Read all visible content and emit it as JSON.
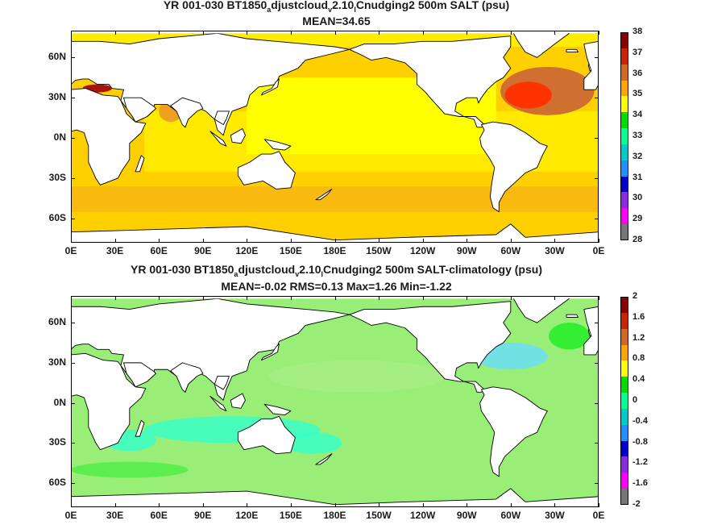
{
  "chart_data": [
    {
      "type": "heatmap",
      "title_line1_parts": [
        "YR 001-030 BT1850",
        "a",
        "djustcloud",
        "v",
        "2.10",
        "l",
        "Cnudging2 500m SALT (psu)"
      ],
      "title_line2": "MEAN=34.65",
      "x_tick_labels": [
        "0E",
        "30E",
        "60E",
        "90E",
        "120E",
        "150E",
        "180E",
        "150W",
        "120W",
        "90W",
        "60W",
        "30W",
        "0E"
      ],
      "y_tick_labels": [
        "60N",
        "30N",
        "0N",
        "30S",
        "60S"
      ],
      "colorbar": {
        "levels": [
          "38",
          "37",
          "36",
          "35",
          "34",
          "33",
          "32",
          "31",
          "30",
          "29",
          "28"
        ],
        "colors": [
          "#8b0000",
          "#cc2200",
          "#d2691e",
          "#ffa500",
          "#ffff00",
          "#00dd00",
          "#00ff99",
          "#00cccc",
          "#1e90ff",
          "#0000cd",
          "#8a2be2",
          "#ff00ff",
          "#777777"
        ]
      },
      "mean": 34.65
    },
    {
      "type": "heatmap",
      "title_line1_parts": [
        "YR 001-030 BT1850",
        "a",
        "djustcloud",
        "v",
        "2.10",
        "l",
        "Cnudging2 500m SALT-climatology (psu)"
      ],
      "title_line2": "MEAN=-0.02   RMS=0.13   Max=1.26   Min=-1.22",
      "x_tick_labels": [
        "0E",
        "30E",
        "60E",
        "90E",
        "120E",
        "150E",
        "180E",
        "150W",
        "120W",
        "90W",
        "60W",
        "30W",
        "0E"
      ],
      "y_tick_labels": [
        "60N",
        "30N",
        "0N",
        "30S",
        "60S"
      ],
      "colorbar": {
        "levels": [
          "2",
          "1.6",
          "1.2",
          "0.8",
          "0.4",
          "0",
          "-0.4",
          "-0.8",
          "-1.2",
          "-1.6",
          "-2"
        ],
        "colors": [
          "#8b0000",
          "#cc2200",
          "#d2691e",
          "#ffa500",
          "#ffff00",
          "#00dd00",
          "#00ff99",
          "#00cccc",
          "#1e90ff",
          "#0000cd",
          "#8a2be2",
          "#ff00ff",
          "#777777"
        ]
      },
      "mean": -0.02,
      "rms": 0.13,
      "max": 1.26,
      "min": -1.22
    }
  ],
  "colors": {
    "ocean_top": "#ffd000",
    "ocean_top_light": "#ffff00",
    "ocean_top_dark": "#f0a020",
    "ocean_top_red": "#ff3300",
    "ocean_top_brown": "#d07030",
    "ocean_bot": "#99ee77",
    "ocean_bot_green": "#33ee33",
    "ocean_bot_cyan": "#33ffcc",
    "ocean_bot_blue": "#66ddff",
    "land": "#ffffff",
    "coast": "#000000"
  }
}
